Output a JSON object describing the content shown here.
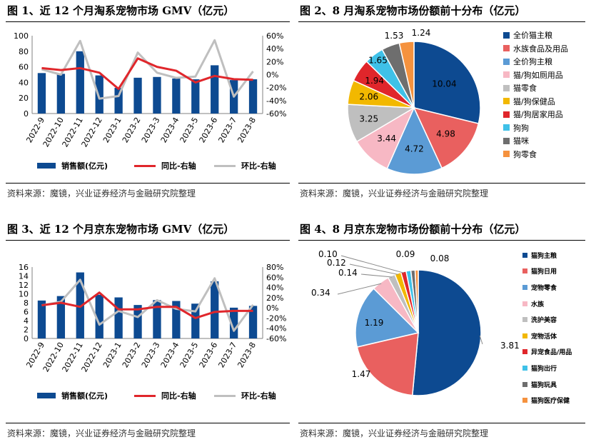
{
  "panels": {
    "p1": {
      "title": "图 1、近 12 个月淘系宠物市场 GMV（亿元）",
      "source": "资料来源：魔镜，兴业证券经济与金融研究院整理"
    },
    "p2": {
      "title": "图 2、8 月淘系宠物市场份额前十分布（亿元）",
      "source": "资料来源：魔镜，兴业证券经济与金融研究院整理"
    },
    "p3": {
      "title": "图 3、近 12 个月京东宠物市场 GMV（亿元）",
      "source": "资料来源：魔镜，兴业证券经济与金融研究院整理"
    },
    "p4": {
      "title": "图 4、8 月京东宠物市场份额前十分布（亿元）",
      "source": "资料来源：魔镜，兴业证券经济与金融研究院整理"
    }
  },
  "colors": {
    "bar": "#0d4a91",
    "yoy": "#e0262b",
    "mom": "#bfbfbf"
  },
  "chart_data": [
    {
      "id": "taobao-gmv",
      "type": "bar",
      "categories": [
        "2022-9",
        "2022-10",
        "2022-11",
        "2022-12",
        "2023-1",
        "2023-2",
        "2023-3",
        "2023-4",
        "2023-5",
        "2023-6",
        "2023-7",
        "2023-8"
      ],
      "series": [
        {
          "name": "销售额(亿元)",
          "axis": "left",
          "values": [
            52,
            51,
            80,
            49,
            33,
            46,
            47,
            45,
            44,
            62,
            43,
            44
          ]
        },
        {
          "name": "同比-右轴",
          "axis": "right",
          "type": "line",
          "values": [
            10,
            7,
            10,
            3,
            -22,
            25,
            12,
            6,
            -12,
            -2,
            -7,
            -8
          ]
        },
        {
          "name": "环比-右轴",
          "axis": "right",
          "type": "line",
          "values": [
            8,
            0,
            52,
            -37,
            -33,
            34,
            3,
            -5,
            -3,
            53,
            -34,
            5
          ]
        }
      ],
      "ylim_left": [
        0,
        100
      ],
      "yticks_left": [
        "0",
        "20",
        "40",
        "60",
        "80",
        "100"
      ],
      "ylim_right": [
        -60,
        60
      ],
      "yticks_right": [
        "-60%",
        "-40%",
        "-20%",
        "0%",
        "20%",
        "40%",
        "60%"
      ],
      "grid": false,
      "legend": "bottom"
    },
    {
      "id": "taobao-share",
      "type": "pie",
      "labels": [
        "全价猫主粮",
        "水族食品及用品",
        "全价狗主粮",
        "猫/狗如厕用品",
        "猫零食",
        "猫/狗保健品",
        "猫/狗居家用品",
        "狗狗",
        "猫咪",
        "狗零食"
      ],
      "values": [
        10.04,
        4.98,
        4.72,
        3.44,
        3.25,
        2.06,
        1.94,
        1.65,
        1.53,
        1.24
      ],
      "value_labels": [
        "10.04",
        "4.98",
        "4.72",
        "3.44",
        "3.25",
        "2.06",
        "1.94",
        "1.65",
        "1.53",
        "1.24"
      ],
      "colors": [
        "#0d4a91",
        "#e9605f",
        "#5b9bd5",
        "#f7b8c4",
        "#bfbfbf",
        "#f2b800",
        "#e0262b",
        "#3fc1e8",
        "#6e6e6e",
        "#f5923e"
      ],
      "legend": "right"
    },
    {
      "id": "jd-gmv",
      "type": "bar",
      "categories": [
        "2022-9",
        "2022-10",
        "2022-11",
        "2022-12",
        "2023-1",
        "2023-2",
        "2023-3",
        "2023-4",
        "2023-5",
        "2023-6",
        "2023-7",
        "2023-8"
      ],
      "series": [
        {
          "name": "销售额(亿元)",
          "axis": "left",
          "values": [
            8.5,
            9.5,
            14.8,
            9.8,
            9.2,
            7.5,
            8.6,
            8.4,
            7.8,
            12.8,
            6.9,
            7.3
          ]
        },
        {
          "name": "同比-右轴",
          "axis": "right",
          "type": "line",
          "values": [
            5,
            10,
            2,
            30,
            -3,
            -3,
            2,
            2,
            -20,
            -8,
            -6,
            -6
          ]
        },
        {
          "name": "环比-右轴",
          "axis": "right",
          "type": "line",
          "values": [
            5,
            12,
            55,
            -33,
            -6,
            -18,
            15,
            -2,
            -7,
            58,
            -45,
            6
          ]
        }
      ],
      "ylim_left": [
        0,
        16
      ],
      "yticks_left": [
        "0",
        "2",
        "4",
        "6",
        "8",
        "10",
        "12",
        "14",
        "16"
      ],
      "ylim_right": [
        -60,
        80
      ],
      "yticks_right": [
        "-60%",
        "-40%",
        "-20%",
        "0%",
        "20%",
        "40%",
        "60%",
        "80%"
      ],
      "grid": false,
      "legend": "bottom"
    },
    {
      "id": "jd-share",
      "type": "pie",
      "labels": [
        "猫狗主粮",
        "猫狗日用",
        "宠物零食",
        "水族",
        "洗护美容",
        "宠物活体",
        "异宠食品/用品",
        "猫狗出行",
        "猫狗玩具",
        "猫狗医疗保健"
      ],
      "values": [
        3.81,
        1.47,
        1.19,
        0.34,
        0.14,
        0.12,
        0.1,
        0.09,
        0.08,
        0.06
      ],
      "value_labels": [
        "3.81",
        "1.47",
        "1.19",
        "0.34",
        "0.14",
        "0.12",
        "0.10",
        "0.09",
        "0.08",
        ""
      ],
      "colors": [
        "#0d4a91",
        "#e9605f",
        "#5b9bd5",
        "#f7b8c4",
        "#bfbfbf",
        "#f2b800",
        "#e0262b",
        "#3fc1e8",
        "#6e6e6e",
        "#f5923e"
      ],
      "legend": "right"
    }
  ]
}
